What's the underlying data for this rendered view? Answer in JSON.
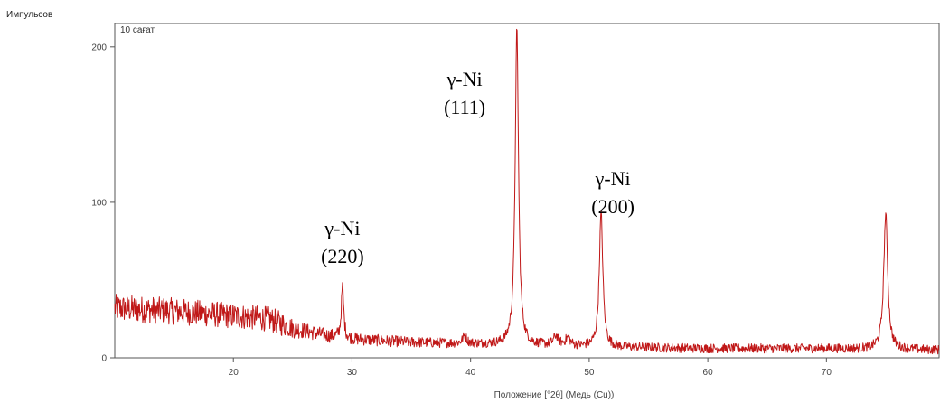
{
  "chart_data": {
    "type": "line",
    "ylabel": "Импульсов",
    "xlabel": "Положение [°2θ] (Медь (Cu))",
    "panel_label": "10 сағат",
    "xlim": [
      10,
      79.5
    ],
    "ylim": [
      0,
      215
    ],
    "xticks": [
      20,
      30,
      40,
      50,
      60,
      70
    ],
    "yticks": [
      0,
      100,
      200
    ],
    "grid": false,
    "line_color": "#c01818",
    "series": [
      {
        "noise_seed": 12345,
        "baseline": [
          [
            10,
            32
          ],
          [
            15,
            30
          ],
          [
            20,
            27
          ],
          [
            23,
            25
          ],
          [
            25,
            19
          ],
          [
            28,
            14
          ],
          [
            30,
            12
          ],
          [
            35,
            10
          ],
          [
            40,
            9
          ],
          [
            45,
            8
          ],
          [
            50,
            7
          ],
          [
            60,
            6
          ],
          [
            70,
            6
          ],
          [
            79.5,
            5
          ]
        ],
        "noise_amplitude": [
          [
            10,
            9
          ],
          [
            24,
            8
          ],
          [
            26,
            5
          ],
          [
            30,
            4
          ],
          [
            40,
            3
          ],
          [
            79.5,
            3
          ]
        ],
        "peaks": [
          {
            "x": 29.2,
            "height": 33,
            "width": 0.12
          },
          {
            "x": 39.5,
            "height": 5,
            "width": 0.2
          },
          {
            "x": 43.9,
            "height": 203,
            "width": 0.17
          },
          {
            "x": 47.2,
            "height": 6,
            "width": 0.25
          },
          {
            "x": 48.2,
            "height": 5,
            "width": 0.25
          },
          {
            "x": 51.0,
            "height": 86,
            "width": 0.18
          },
          {
            "x": 75.0,
            "height": 87,
            "width": 0.2
          }
        ]
      }
    ],
    "annotations": [
      {
        "lines": [
          "γ-Ni",
          "(220)"
        ],
        "x": 29.2,
        "y": 79
      },
      {
        "lines": [
          "γ-Ni",
          "(111)"
        ],
        "x": 39.5,
        "y": 175
      },
      {
        "lines": [
          "γ-Ni",
          "(200)"
        ],
        "x": 52.0,
        "y": 111
      }
    ]
  }
}
